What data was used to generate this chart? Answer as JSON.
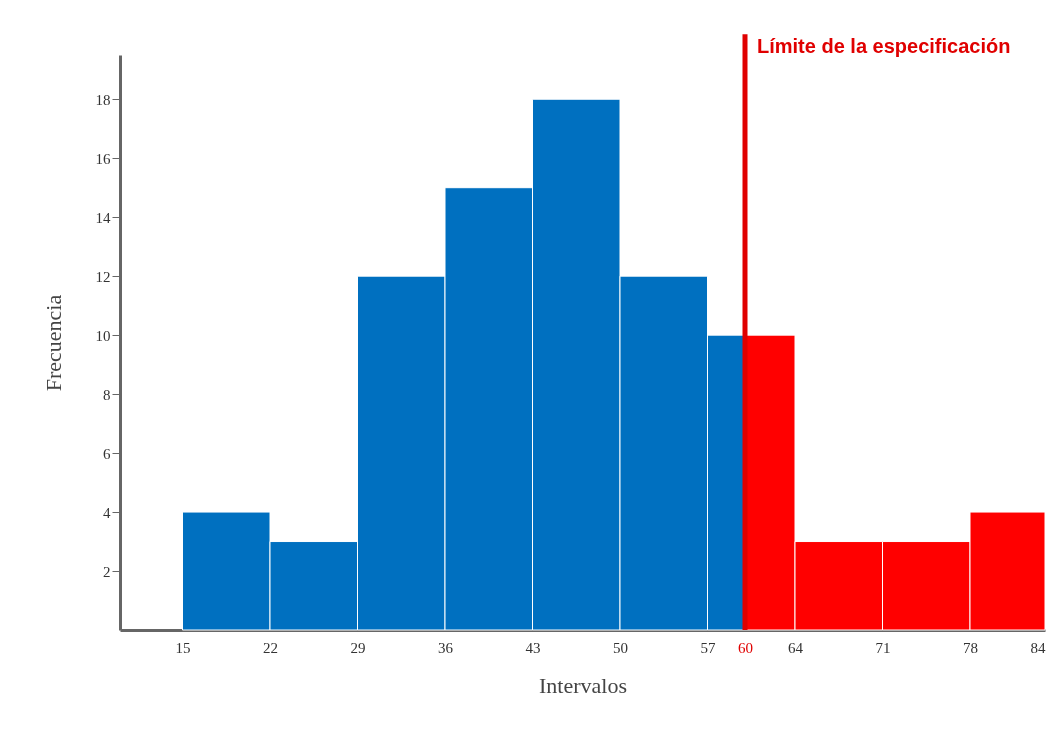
{
  "chart_data": {
    "type": "histogram",
    "xlabel": "Intervalos",
    "ylabel": "Frecuencia",
    "bins": [
      15,
      22,
      29,
      36,
      43,
      50,
      57,
      60,
      64,
      71,
      78,
      84
    ],
    "values": [
      4,
      3,
      12,
      15,
      18,
      12,
      10,
      10,
      3,
      3,
      4
    ],
    "colors": [
      "#0070c0",
      "#0070c0",
      "#0070c0",
      "#0070c0",
      "#0070c0",
      "#0070c0",
      "#0070c0",
      "#ff0000",
      "#ff0000",
      "#ff0000",
      "#ff0000"
    ],
    "xlim": [
      10,
      84
    ],
    "ylim": [
      0,
      19.5
    ],
    "xticks": [
      15,
      22,
      29,
      36,
      43,
      50,
      57,
      60,
      64,
      71,
      78,
      84
    ],
    "yticks": [
      2,
      4,
      6,
      8,
      10,
      12,
      14,
      16,
      18
    ],
    "ref_lines": [
      {
        "axis": "x",
        "value": 60,
        "label": "Límite de la especificación",
        "color": "#e00000"
      }
    ],
    "grid": false
  }
}
